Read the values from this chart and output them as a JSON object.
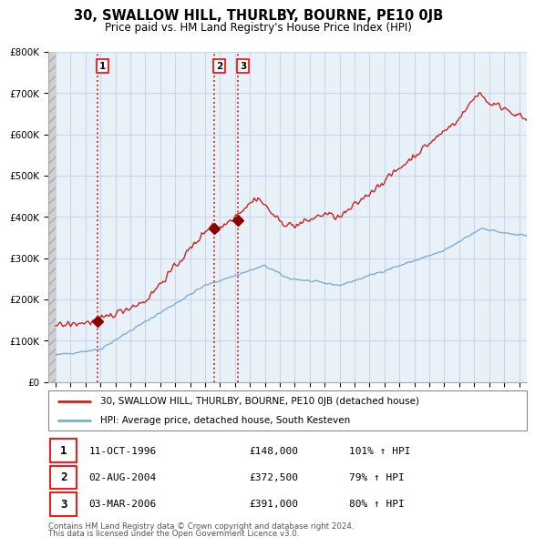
{
  "title": "30, SWALLOW HILL, THURLBY, BOURNE, PE10 0JB",
  "subtitle": "Price paid vs. HM Land Registry's House Price Index (HPI)",
  "legend_line1": "30, SWALLOW HILL, THURLBY, BOURNE, PE10 0JB (detached house)",
  "legend_line2": "HPI: Average price, detached house, South Kesteven",
  "footer1": "Contains HM Land Registry data © Crown copyright and database right 2024.",
  "footer2": "This data is licensed under the Open Government Licence v3.0.",
  "sales": [
    {
      "num": 1,
      "date_x": 1996.78,
      "price": 148000,
      "label": "11-OCT-1996",
      "pct": "101% ↑ HPI"
    },
    {
      "num": 2,
      "date_x": 2004.58,
      "price": 372500,
      "label": "02-AUG-2004",
      "pct": "79% ↑ HPI"
    },
    {
      "num": 3,
      "date_x": 2006.17,
      "price": 391000,
      "label": "03-MAR-2006",
      "pct": "80% ↑ HPI"
    }
  ],
  "hpi_color": "#7aafd4",
  "sale_color": "#cc2222",
  "grid_color": "#c8d8e8",
  "plot_bg": "#e8f0f8",
  "ylim": [
    0,
    800000
  ],
  "yticks": [
    0,
    100000,
    200000,
    300000,
    400000,
    500000,
    600000,
    700000,
    800000
  ],
  "xlim_start": 1993.5,
  "xlim_end": 2025.5,
  "row_data": [
    [
      "1",
      "11-OCT-1996",
      "£148,000",
      "101% ↑ HPI"
    ],
    [
      "2",
      "02-AUG-2004",
      "£372,500",
      "79% ↑ HPI"
    ],
    [
      "3",
      "03-MAR-2006",
      "£391,000",
      "80% ↑ HPI"
    ]
  ]
}
